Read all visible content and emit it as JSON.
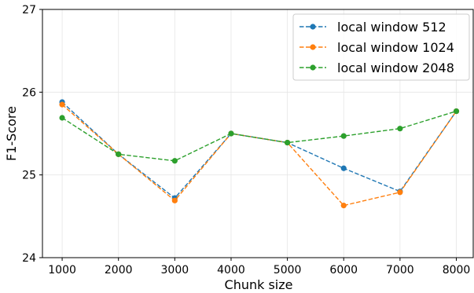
{
  "chart_data": {
    "type": "line",
    "xlabel": "Chunk size",
    "ylabel": "F1-Score",
    "xlim": [
      650,
      8300
    ],
    "ylim": [
      24,
      27
    ],
    "xticks": [
      1000,
      2000,
      3000,
      4000,
      5000,
      6000,
      7000,
      8000
    ],
    "yticks": [
      24,
      25,
      26,
      27
    ],
    "grid": true,
    "legend_position": "top-right",
    "series": [
      {
        "name": "local window 512",
        "color": "#1f77b4",
        "linestyle": "dashed",
        "marker": "circle",
        "x": [
          1000,
          2000,
          3000,
          4000,
          5000,
          6000,
          7000,
          8000
        ],
        "y": [
          25.88,
          25.25,
          24.72,
          25.5,
          25.39,
          25.08,
          24.8,
          25.77
        ]
      },
      {
        "name": "local window 1024",
        "color": "#ff7f0e",
        "linestyle": "dashed",
        "marker": "circle",
        "x": [
          1000,
          2000,
          3000,
          4000,
          5000,
          6000,
          7000,
          8000
        ],
        "y": [
          25.85,
          25.25,
          24.69,
          25.5,
          25.39,
          24.63,
          24.79,
          25.77
        ]
      },
      {
        "name": "local window 2048",
        "color": "#2ca02c",
        "linestyle": "dashed",
        "marker": "circle",
        "x": [
          1000,
          2000,
          3000,
          4000,
          5000,
          6000,
          7000,
          8000
        ],
        "y": [
          25.69,
          25.25,
          25.17,
          25.5,
          25.39,
          25.47,
          25.56,
          25.77
        ]
      }
    ]
  }
}
